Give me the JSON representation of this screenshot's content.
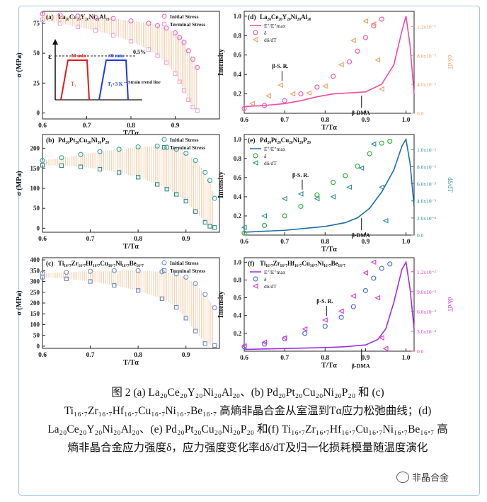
{
  "chart_data": [
    {
      "id": "a",
      "type": "scatter",
      "panel_label": "(a)",
      "alloy": "La₂₀Ce₂₀Y₂₀Ni₂₀Al₂₀",
      "xlabel": "T/Tα",
      "ylabel": "σ (MPa)",
      "xlim": [
        0.6,
        1.0
      ],
      "ylim": [
        -5,
        85
      ],
      "xticks": [
        "0.6",
        "0.7",
        "0.8",
        "0.9"
      ],
      "yticks": [
        "0",
        "25",
        "50",
        "75"
      ],
      "series": [
        {
          "name": "Initial Stress",
          "marker": "circle",
          "color": "#f06cc0",
          "x": [
            0.6,
            0.64,
            0.68,
            0.72,
            0.76,
            0.8,
            0.84,
            0.86,
            0.88,
            0.9,
            0.91,
            0.92,
            0.93,
            0.94,
            0.95
          ],
          "y": [
            83,
            82,
            81,
            80,
            79,
            77,
            75,
            73,
            71,
            67,
            63,
            59,
            52,
            45,
            38
          ]
        },
        {
          "name": "Terminal Stress",
          "marker": "square",
          "color": "#f1a3d4",
          "x": [
            0.6,
            0.64,
            0.68,
            0.72,
            0.76,
            0.8,
            0.84,
            0.86,
            0.88,
            0.9,
            0.91,
            0.92,
            0.93,
            0.94,
            0.95
          ],
          "y": [
            78,
            75,
            72,
            69,
            65,
            60,
            53,
            48,
            42,
            33,
            26,
            19,
            11,
            5,
            2
          ]
        }
      ],
      "inset": {
        "eps_label": "ε",
        "pct_label": "0.5%",
        "hold1": "30 min",
        "hold2": "30 min",
        "t1": "T₁",
        "t2": "T₁+3 K",
        "trend": "Strain trend line"
      }
    },
    {
      "id": "b",
      "type": "scatter",
      "panel_label": "(b)",
      "alloy": "Pd₂₀Pt₂₀Cu₂₀Ni₂₀P₂₀",
      "xlabel": "T/Tα",
      "ylabel": "σ (MPa)",
      "xlim": [
        0.6,
        0.97
      ],
      "ylim": [
        -10,
        235
      ],
      "xticks": [
        "0.6",
        "0.7",
        "0.8",
        "0.9"
      ],
      "yticks": [
        "0",
        "50",
        "100",
        "150",
        "200"
      ],
      "series": [
        {
          "name": "Initial Stress",
          "marker": "circle",
          "color": "#3da6a2",
          "x": [
            0.6,
            0.64,
            0.68,
            0.72,
            0.76,
            0.8,
            0.84,
            0.86,
            0.88,
            0.9,
            0.92,
            0.94,
            0.95,
            0.96
          ],
          "y": [
            170,
            177,
            185,
            192,
            198,
            204,
            206,
            203,
            198,
            188,
            170,
            140,
            120,
            75
          ]
        },
        {
          "name": "Terminal Stress",
          "marker": "square",
          "color": "#2d8b87",
          "x": [
            0.6,
            0.64,
            0.68,
            0.72,
            0.76,
            0.8,
            0.84,
            0.86,
            0.88,
            0.9,
            0.92,
            0.94,
            0.95,
            0.96
          ],
          "y": [
            158,
            157,
            154,
            148,
            140,
            128,
            110,
            98,
            85,
            68,
            42,
            15,
            5,
            2
          ]
        }
      ]
    },
    {
      "id": "c",
      "type": "scatter",
      "panel_label": "(c)",
      "alloy": "Ti₁₆.₇Zr₁₆.₇Hf₁₆.₇Cu₁₆.₇Ni₁₆.₇Be₁₆.₇",
      "xlabel": "T/Tα",
      "ylabel": "σ (MPa)",
      "xlim": [
        0.6,
        0.97
      ],
      "ylim": [
        -10,
        410
      ],
      "xticks": [
        "0.6",
        "0.7",
        "0.8",
        "0.9"
      ],
      "yticks": [
        "0",
        "50",
        "100",
        "150",
        "200",
        "250",
        "300",
        "350",
        "400"
      ],
      "series": [
        {
          "name": "Initial Stress",
          "marker": "circle",
          "color": "#7a96cf",
          "x": [
            0.6,
            0.65,
            0.7,
            0.75,
            0.8,
            0.85,
            0.88,
            0.9,
            0.92,
            0.94,
            0.96
          ],
          "y": [
            338,
            342,
            347,
            350,
            350,
            345,
            335,
            320,
            290,
            240,
            178
          ]
        },
        {
          "name": "Terminal Stress",
          "marker": "square",
          "color": "#6d88c4",
          "x": [
            0.6,
            0.65,
            0.7,
            0.75,
            0.8,
            0.85,
            0.88,
            0.9,
            0.92,
            0.94,
            0.96
          ],
          "y": [
            320,
            312,
            300,
            282,
            258,
            220,
            180,
            130,
            70,
            12,
            3
          ]
        }
      ]
    },
    {
      "id": "d",
      "type": "line",
      "panel_label": "(d)",
      "alloy": "La₂₀Ce₂₀Y₂₀Ni₂₀Al₂₀",
      "xlabel": "T/Tα",
      "ylabel": "Intensity",
      "y2label": "dδ/dT",
      "xlim": [
        0.6,
        1.02
      ],
      "ylim": [
        0,
        1.05
      ],
      "xticks": [
        "0.6",
        "0.7",
        "0.8",
        "0.9",
        "1.0"
      ],
      "yticks": [
        "0.2",
        "0.4",
        "0.6",
        "0.8",
        "1.0"
      ],
      "y2ticks": [
        "0.0",
        "4.0x10⁻³",
        "8.0x10⁻³",
        "1.2x10⁻²"
      ],
      "annotations": [
        "β-S. R.",
        "β-DMA"
      ],
      "series": [
        {
          "name": "E″/E″max",
          "marker": "line",
          "color": "#f04aa7",
          "x": [
            0.6,
            0.65,
            0.7,
            0.74,
            0.78,
            0.82,
            0.86,
            0.9,
            0.94,
            0.97,
            0.99,
            1.0,
            1.01,
            1.02
          ],
          "y": [
            0.07,
            0.08,
            0.1,
            0.13,
            0.17,
            0.2,
            0.21,
            0.22,
            0.3,
            0.5,
            0.85,
            1.0,
            0.7,
            0.2
          ]
        },
        {
          "name": "δ",
          "marker": "circle",
          "color": "#f05aab",
          "x": [
            0.6,
            0.65,
            0.7,
            0.74,
            0.78,
            0.82,
            0.86,
            0.88,
            0.9,
            0.92,
            0.94
          ],
          "y": [
            0.05,
            0.08,
            0.13,
            0.2,
            0.27,
            0.38,
            0.53,
            0.64,
            0.78,
            0.9,
            0.97
          ]
        },
        {
          "name": "dδ/dT",
          "marker": "triangle",
          "color": "#f2a062",
          "x": [
            0.62,
            0.66,
            0.69,
            0.72,
            0.76,
            0.8,
            0.84,
            0.87,
            0.9,
            0.92,
            0.93,
            0.94
          ],
          "y": [
            0.1,
            0.18,
            0.29,
            0.2,
            0.21,
            0.28,
            0.5,
            0.75,
            0.95,
            0.92,
            0.55,
            0.25
          ]
        }
      ]
    },
    {
      "id": "e",
      "type": "line",
      "panel_label": "(e)",
      "alloy": "Pd₂₀Pt₂₀Cu₂₀Ni₂₀P₂₀",
      "xlabel": "T/Tα",
      "ylabel": "Intensity",
      "y2label": "dδ/dT",
      "xlim": [
        0.6,
        1.02
      ],
      "ylim": [
        0,
        1.05
      ],
      "xticks": [
        "0.6",
        "0.7",
        "0.8",
        "0.9",
        "1.0"
      ],
      "yticks": [
        "0.2",
        "0.4",
        "0.6",
        "0.8",
        "1.0"
      ],
      "y2ticks": [
        "0.0",
        "2.0x10⁻³",
        "4.0x10⁻³",
        "6.0x10⁻³",
        "8.0x10⁻³",
        "1.0x10⁻²"
      ],
      "annotations": [
        "β-S. R.",
        "β-DMA"
      ],
      "series": [
        {
          "name": "E″/E″max",
          "marker": "line",
          "color": "#1f6ea8",
          "x": [
            0.6,
            0.65,
            0.7,
            0.75,
            0.8,
            0.85,
            0.88,
            0.91,
            0.94,
            0.97,
            0.99,
            1.0,
            1.01,
            1.02
          ],
          "y": [
            0.03,
            0.04,
            0.05,
            0.07,
            0.09,
            0.13,
            0.18,
            0.28,
            0.45,
            0.68,
            0.93,
            1.0,
            0.75,
            0.3
          ]
        },
        {
          "name": "δ",
          "marker": "circle",
          "color": "#34b23c",
          "x": [
            0.6,
            0.65,
            0.7,
            0.74,
            0.78,
            0.82,
            0.85,
            0.88,
            0.91,
            0.94,
            0.96
          ],
          "y": [
            0.02,
            0.1,
            0.2,
            0.3,
            0.42,
            0.55,
            0.62,
            0.72,
            0.85,
            0.96,
            0.98
          ]
        },
        {
          "name": "dδ/dT",
          "marker": "triangle",
          "color": "#2a8f8f",
          "x": [
            0.6,
            0.65,
            0.7,
            0.74,
            0.78,
            0.82,
            0.86,
            0.89,
            0.92,
            0.94,
            0.95
          ],
          "y": [
            0.08,
            0.2,
            0.38,
            0.43,
            0.38,
            0.4,
            0.5,
            0.7,
            0.95,
            0.5,
            0.15
          ]
        }
      ]
    },
    {
      "id": "f",
      "type": "line",
      "panel_label": "(f)",
      "alloy": "Ti₁₆.₇Zr₁₆.₇Hf₁₆.₇Cu₁₆.₇Ni₁₆.₇Be₁₆.₇",
      "xlabel": "T/Tα",
      "ylabel": "Intensity",
      "y2label": "dδ/dT",
      "xlim": [
        0.6,
        1.02
      ],
      "ylim": [
        0,
        1.05
      ],
      "xticks": [
        "0.6",
        "0.7",
        "0.8",
        "0.9",
        "1.0"
      ],
      "yticks": [
        "0.2",
        "0.4",
        "0.6",
        "0.8",
        "1.0"
      ],
      "y2ticks": [
        "0.0",
        "3.0x10⁻³",
        "6.0x10⁻³",
        "9.0x10⁻³",
        "1.2x10⁻²"
      ],
      "annotations": [
        "β-S. R.",
        "β-DMA"
      ],
      "series": [
        {
          "name": "E″/E″max",
          "marker": "line",
          "color": "#9b30e0",
          "x": [
            0.6,
            0.7,
            0.8,
            0.85,
            0.9,
            0.93,
            0.95,
            0.97,
            0.99,
            1.0,
            1.01,
            1.02
          ],
          "y": [
            0.02,
            0.03,
            0.04,
            0.05,
            0.07,
            0.13,
            0.25,
            0.55,
            0.92,
            1.0,
            0.7,
            0.25
          ]
        },
        {
          "name": "δ",
          "marker": "circle",
          "color": "#4f6fd6",
          "x": [
            0.6,
            0.65,
            0.7,
            0.75,
            0.8,
            0.84,
            0.87,
            0.9,
            0.92,
            0.94,
            0.96
          ],
          "y": [
            0.05,
            0.08,
            0.14,
            0.2,
            0.28,
            0.38,
            0.5,
            0.68,
            0.82,
            0.93,
            0.98
          ]
        },
        {
          "name": "dδ/dT",
          "marker": "triangle",
          "color": "#e03ad2",
          "x": [
            0.6,
            0.65,
            0.7,
            0.75,
            0.8,
            0.84,
            0.87,
            0.9,
            0.92,
            0.93,
            0.94,
            0.95
          ],
          "y": [
            0.06,
            0.1,
            0.15,
            0.25,
            0.35,
            0.45,
            0.62,
            0.88,
            1.0,
            0.6,
            0.15,
            0.03
          ]
        }
      ]
    }
  ],
  "caption": {
    "line1": "图 2 (a) La₂₀Ce₂₀Y₂₀Ni₂₀Al₂₀、(b) Pd₂₀Pt₂₀Cu₂₀Ni₂₀P₂₀ 和 (c)",
    "line2": "Ti₁₆.₇Zr₁₆.₇Hf₁₆.₇Cu₁₆.₇Ni₁₆.₇Be₁₆.₇ 高熵非晶合金从室温到Tα应力松弛曲线；(d)",
    "line3": "La₂₀Ce₂₀Y₂₀Ni₂₀Al₂₀、(e) Pd₂₀Pt₂₀Cu₂₀Ni₂₀P₂₀ 和(f) Ti₁₆.₇Zr₁₆.₇Hf₁₆.₇Cu₁₆.₇Ni₁₆.₇Be₁₆.₇ 高",
    "line4": "熵非晶合金应力强度δ，应力强度变化率dδ/dT及归一化损耗模量随温度演化"
  },
  "watermark": "非晶合金"
}
